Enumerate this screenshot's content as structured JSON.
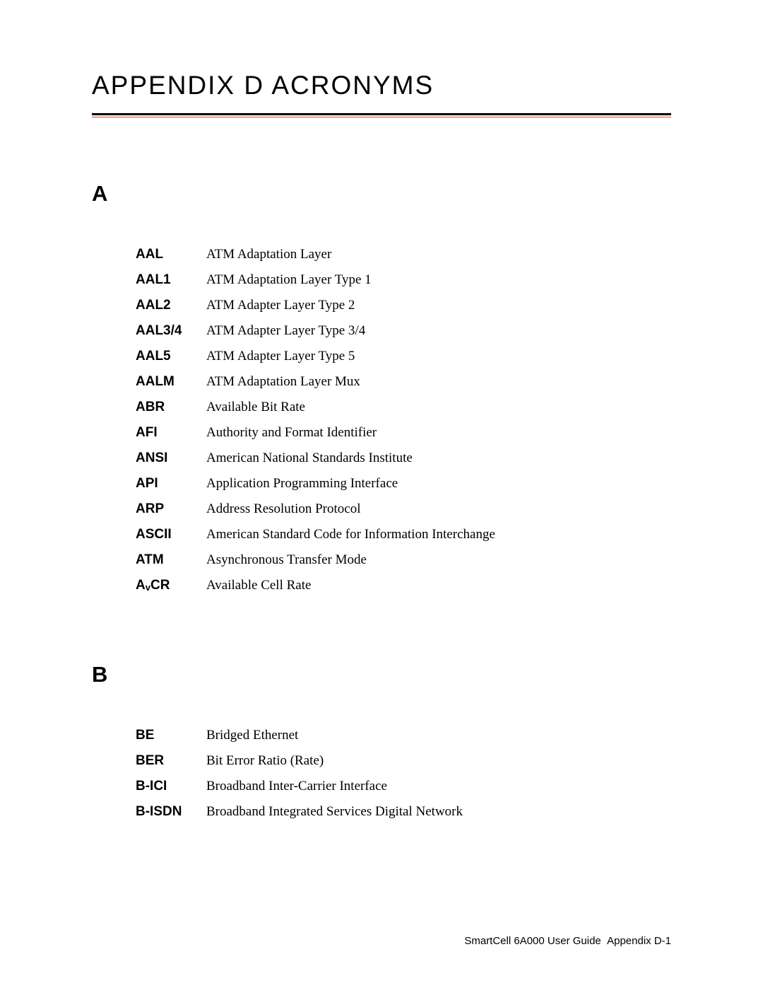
{
  "title": "APPENDIX D ACRONYMS",
  "colors": {
    "background": "#ffffff",
    "text": "#000000",
    "rule_main": "#000000",
    "rule_accent": "#ee3a24"
  },
  "sections": [
    {
      "letter": "A",
      "entries": [
        {
          "term": "AAL",
          "definition": "ATM Adaptation Layer"
        },
        {
          "term": "AAL1",
          "definition": "ATM Adaptation Layer Type 1"
        },
        {
          "term": "AAL2",
          "definition": "ATM Adapter Layer Type 2"
        },
        {
          "term": "AAL3/4",
          "definition": "ATM Adapter Layer Type 3/4"
        },
        {
          "term": "AAL5",
          "definition": "ATM Adapter Layer Type 5"
        },
        {
          "term": "AALM",
          "definition": "ATM Adaptation Layer Mux"
        },
        {
          "term": "ABR",
          "definition": "Available Bit Rate"
        },
        {
          "term": "AFI",
          "definition": "Authority and Format Identifier"
        },
        {
          "term": "ANSI",
          "definition": "American National Standards Institute"
        },
        {
          "term": "API",
          "definition": "Application Programming Interface"
        },
        {
          "term": "ARP",
          "definition": "Address Resolution Protocol"
        },
        {
          "term": "ASCII",
          "definition": "American Standard Code for Information Interchange"
        },
        {
          "term": "ATM",
          "definition": "Asynchronous Transfer Mode"
        },
        {
          "term": "AvCR",
          "term_pre": "A",
          "term_sub": "v",
          "term_post": "CR",
          "definition": "Available Cell Rate"
        }
      ]
    },
    {
      "letter": "B",
      "entries": [
        {
          "term": "BE",
          "definition": "Bridged Ethernet"
        },
        {
          "term": "BER",
          "definition": "Bit Error Ratio (Rate)"
        },
        {
          "term": "B-ICI",
          "definition": "Broadband Inter-Carrier Interface"
        },
        {
          "term": "B-ISDN",
          "definition": "Broadband Integrated Services Digital Network"
        }
      ]
    }
  ],
  "footer": {
    "doc": "SmartCell 6A000 User Guide",
    "page": "Appendix D-1"
  },
  "typography": {
    "title_font": "Arial",
    "title_size_pt": 28,
    "section_letter_size_pt": 23,
    "term_size_pt": 14,
    "definition_font": "Times New Roman",
    "definition_size_pt": 14,
    "footer_size_pt": 11
  }
}
